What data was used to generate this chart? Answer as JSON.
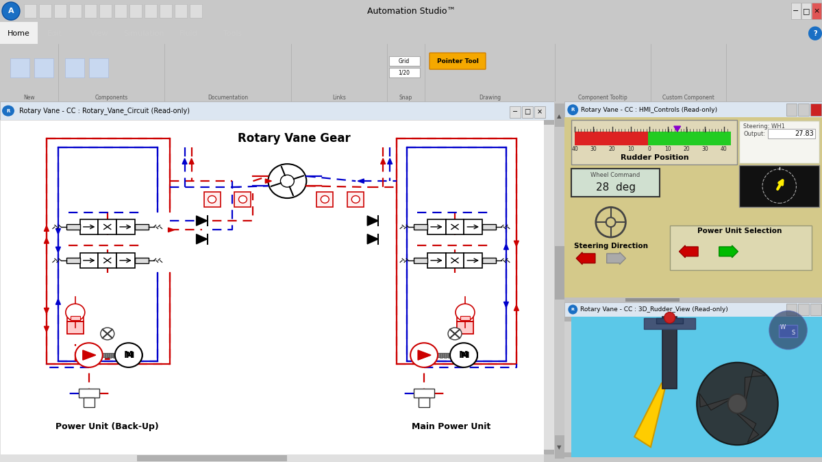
{
  "title": "Automation Studio™",
  "main_title": "Rotary Vane Gear",
  "left_label": "Power Unit (Back-Up)",
  "right_label": "Main Power Unit",
  "hmi_title": "Rotary Vane - CC : HMI_Controls (Read-only)",
  "rudder_title": "Rotary Vane - CC : 3D_Rudder_View (Read-only)",
  "circuit_title": "Rotary Vane - CC : Rotary_Vane_Circuit (Read-only)",
  "steering_label": "Steering: WH1",
  "output_label": "Output:",
  "output_value": "27.83",
  "rudder_pos_label": "Rudder Position",
  "wheel_cmd_label": "Wheel Command",
  "wheel_cmd_value": "28  deg",
  "steering_dir_label": "Steering Direction",
  "power_sel_label": "Power Unit Selection",
  "window_bg": "#f0f0f0",
  "titlebar_bg": "#f0f0f0",
  "menu_bg": "#3c3c3c",
  "ribbon_bg": "#dce6f1",
  "circuit_bg": "#ffffff",
  "hmi_bg": "#d4c98a",
  "rudder_view_bg": "#5bc8e8",
  "red": "#cc0000",
  "blue": "#0000cc",
  "green_bar": "#00cc00"
}
